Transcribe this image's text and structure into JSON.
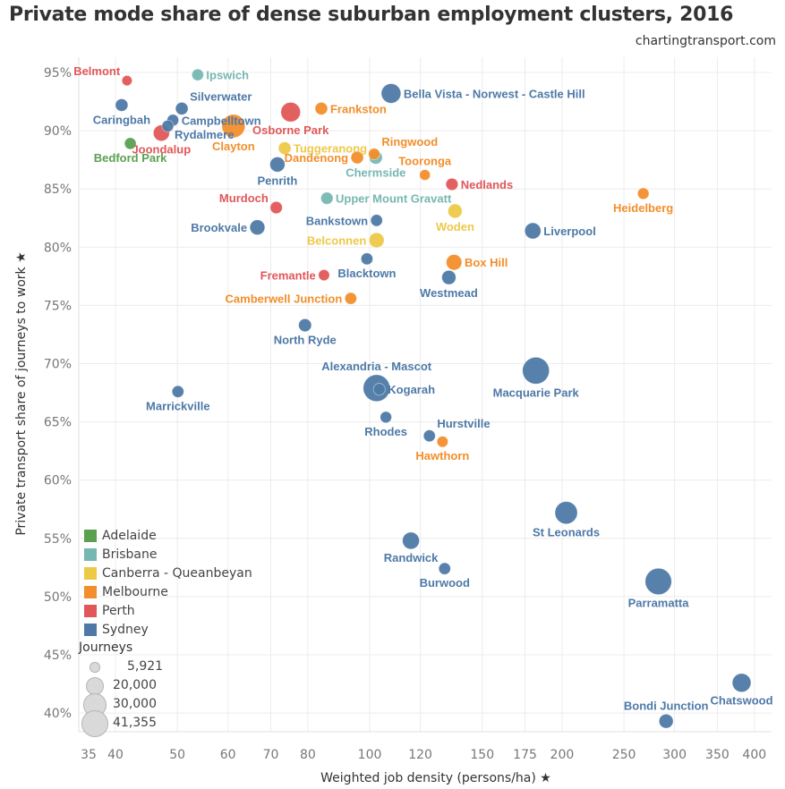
{
  "header": {
    "title": "Private mode share of dense suburban employment clusters, 2016",
    "credit": "chartingtransport.com"
  },
  "chart_data": {
    "type": "scatter",
    "title": "Private mode share of dense suburban employment clusters, 2016",
    "xlabel": "Weighted job density (persons/ha) ★",
    "ylabel": "Private transport share of journeys to work ★",
    "xscale": "log",
    "xlim": [
      35,
      430
    ],
    "ylim": [
      38,
      96.5
    ],
    "xticks": [
      35,
      40,
      50,
      60,
      70,
      80,
      100,
      120,
      150,
      175,
      200,
      250,
      300,
      350,
      400
    ],
    "yticks": [
      40,
      45,
      50,
      55,
      60,
      65,
      70,
      75,
      80,
      85,
      90,
      95
    ],
    "ytick_format": "%",
    "grid": true,
    "size_field": "Journeys",
    "color_field": "City",
    "colors": {
      "Adelaide": "#59a14f",
      "Brisbane": "#76b7b2",
      "Canberra - Queanbeyan": "#edc948",
      "Melbourne": "#f28e2b",
      "Perth": "#e15759",
      "Sydney": "#4e79a7"
    },
    "legend": {
      "placement": "bottom-left",
      "cities": [
        "Adelaide",
        "Brisbane",
        "Canberra - Queanbeyan",
        "Melbourne",
        "Perth",
        "Sydney"
      ],
      "size_title": "Journeys",
      "size_values": [
        5921,
        20000,
        30000,
        41355
      ],
      "size_labels": [
        "5,921",
        "20,000",
        "30,000",
        "41,355"
      ]
    },
    "points": [
      {
        "name": "Belmont",
        "city": "Perth",
        "x": 41.7,
        "y": 94.3,
        "journeys": 6000,
        "label_pos": "top-left"
      },
      {
        "name": "Ipswich",
        "city": "Brisbane",
        "x": 53.8,
        "y": 94.8,
        "journeys": 7800,
        "label_pos": "right"
      },
      {
        "name": "Caringbah",
        "city": "Sydney",
        "x": 40.9,
        "y": 92.2,
        "journeys": 9000,
        "label_pos": "below"
      },
      {
        "name": "Silverwater",
        "city": "Sydney",
        "x": 50.8,
        "y": 91.9,
        "journeys": 9000,
        "label_pos": "top-right"
      },
      {
        "name": "Campbelltown",
        "city": "Sydney",
        "x": 49.2,
        "y": 90.9,
        "journeys": 7800,
        "label_pos": "right"
      },
      {
        "name": "Rydalmere",
        "city": "Sydney",
        "x": 48.3,
        "y": 90.4,
        "journeys": 7800,
        "label_pos": "below-right"
      },
      {
        "name": "Joondalup",
        "city": "Perth",
        "x": 47.2,
        "y": 89.8,
        "journeys": 15000,
        "label_pos": "below"
      },
      {
        "name": "Bedford Park",
        "city": "Adelaide",
        "x": 42.2,
        "y": 88.9,
        "journeys": 7800,
        "label_pos": "below"
      },
      {
        "name": "Clayton",
        "city": "Melbourne",
        "x": 61.2,
        "y": 90.4,
        "journeys": 31000,
        "label_pos": "below"
      },
      {
        "name": "Osborne Park",
        "city": "Perth",
        "x": 75.2,
        "y": 91.6,
        "journeys": 22000,
        "label_pos": "below"
      },
      {
        "name": "Frankston",
        "city": "Melbourne",
        "x": 84.0,
        "y": 91.9,
        "journeys": 9000,
        "label_pos": "right"
      },
      {
        "name": "Bella Vista - Norwest - Castle Hill",
        "city": "Sydney",
        "x": 108,
        "y": 93.2,
        "journeys": 22000,
        "label_pos": "right"
      },
      {
        "name": "Tuggeranong",
        "city": "Canberra - Queanbeyan",
        "x": 73.6,
        "y": 88.5,
        "journeys": 9000,
        "label_pos": "right"
      },
      {
        "name": "Dandenong",
        "city": "Melbourne",
        "x": 95.6,
        "y": 87.7,
        "journeys": 9000,
        "label_pos": "left"
      },
      {
        "name": "Ringwood",
        "city": "Melbourne",
        "x": 101.6,
        "y": 88.0,
        "journeys": 7500,
        "label_pos": "top-right"
      },
      {
        "name": "Chermside",
        "city": "Brisbane",
        "x": 102.2,
        "y": 87.7,
        "journeys": 10000,
        "label_pos": "below"
      },
      {
        "name": "Penrith",
        "city": "Sydney",
        "x": 71.7,
        "y": 87.1,
        "journeys": 13000,
        "label_pos": "below"
      },
      {
        "name": "Tooronga",
        "city": "Melbourne",
        "x": 122,
        "y": 86.2,
        "journeys": 6500,
        "label_pos": "top"
      },
      {
        "name": "Nedlands",
        "city": "Perth",
        "x": 134.5,
        "y": 85.4,
        "journeys": 8500,
        "label_pos": "right"
      },
      {
        "name": "Heidelberg",
        "city": "Melbourne",
        "x": 268,
        "y": 84.6,
        "journeys": 7500,
        "label_pos": "below"
      },
      {
        "name": "Upper Mount Gravatt",
        "city": "Brisbane",
        "x": 85.7,
        "y": 84.2,
        "journeys": 8500,
        "label_pos": "right"
      },
      {
        "name": "Murdoch",
        "city": "Perth",
        "x": 71.4,
        "y": 83.4,
        "journeys": 8500,
        "label_pos": "top-left"
      },
      {
        "name": "Bankstown",
        "city": "Sydney",
        "x": 102.5,
        "y": 82.3,
        "journeys": 8000,
        "label_pos": "left"
      },
      {
        "name": "Woden",
        "city": "Canberra - Queanbeyan",
        "x": 136,
        "y": 83.1,
        "journeys": 11500,
        "label_pos": "below"
      },
      {
        "name": "Brookvale",
        "city": "Sydney",
        "x": 66.7,
        "y": 81.7,
        "journeys": 13000,
        "label_pos": "left"
      },
      {
        "name": "Liverpool",
        "city": "Sydney",
        "x": 180,
        "y": 81.4,
        "journeys": 15000,
        "label_pos": "right"
      },
      {
        "name": "Belconnen",
        "city": "Canberra - Queanbeyan",
        "x": 102.5,
        "y": 80.6,
        "journeys": 13000,
        "label_pos": "left"
      },
      {
        "name": "Blacktown",
        "city": "Sydney",
        "x": 99,
        "y": 79.0,
        "journeys": 8000,
        "label_pos": "below"
      },
      {
        "name": "Box Hill",
        "city": "Melbourne",
        "x": 135.5,
        "y": 78.7,
        "journeys": 14000,
        "label_pos": "right"
      },
      {
        "name": "Westmead",
        "city": "Sydney",
        "x": 133,
        "y": 77.4,
        "journeys": 11500,
        "label_pos": "below"
      },
      {
        "name": "Fremantle",
        "city": "Perth",
        "x": 84.8,
        "y": 77.6,
        "journeys": 7000,
        "label_pos": "left"
      },
      {
        "name": "Camberwell Junction",
        "city": "Melbourne",
        "x": 93.4,
        "y": 75.6,
        "journeys": 8000,
        "label_pos": "left"
      },
      {
        "name": "North Ryde",
        "city": "Sydney",
        "x": 79.2,
        "y": 73.3,
        "journeys": 9500,
        "label_pos": "below"
      },
      {
        "name": "Macquarie Park",
        "city": "Sydney",
        "x": 182,
        "y": 69.4,
        "journeys": 41355,
        "label_pos": "below"
      },
      {
        "name": "Kogarah",
        "city": "Sydney",
        "x": 103.5,
        "y": 67.8,
        "journeys": 8000,
        "label_pos": "right"
      },
      {
        "name": "Alexandria - Mascot",
        "city": "Sydney",
        "x": 102.5,
        "y": 67.9,
        "journeys": 41000,
        "label_pos": "top"
      },
      {
        "name": "Marrickville",
        "city": "Sydney",
        "x": 50.1,
        "y": 67.6,
        "journeys": 8000,
        "label_pos": "below"
      },
      {
        "name": "Rhodes",
        "city": "Sydney",
        "x": 106,
        "y": 65.4,
        "journeys": 7500,
        "label_pos": "below"
      },
      {
        "name": "Hurstville",
        "city": "Sydney",
        "x": 124,
        "y": 63.8,
        "journeys": 8000,
        "label_pos": "top-right"
      },
      {
        "name": "Hawthorn",
        "city": "Melbourne",
        "x": 130,
        "y": 63.3,
        "journeys": 7000,
        "label_pos": "below"
      },
      {
        "name": "St Leonards",
        "city": "Sydney",
        "x": 203,
        "y": 57.2,
        "journeys": 29000,
        "label_pos": "below"
      },
      {
        "name": "Randwick",
        "city": "Sydney",
        "x": 116,
        "y": 54.8,
        "journeys": 16500,
        "label_pos": "below"
      },
      {
        "name": "Burwood",
        "city": "Sydney",
        "x": 131,
        "y": 52.4,
        "journeys": 8000,
        "label_pos": "below"
      },
      {
        "name": "Parramatta",
        "city": "Sydney",
        "x": 283,
        "y": 51.3,
        "journeys": 40000,
        "label_pos": "below"
      },
      {
        "name": "Chatswood",
        "city": "Sydney",
        "x": 382,
        "y": 42.6,
        "journeys": 20000,
        "label_pos": "below"
      },
      {
        "name": "Bondi Junction",
        "city": "Sydney",
        "x": 291,
        "y": 39.3,
        "journeys": 11500,
        "label_pos": "top"
      }
    ]
  }
}
